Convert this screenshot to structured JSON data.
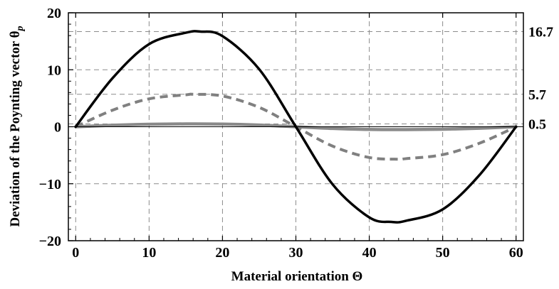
{
  "chart_data": {
    "type": "line",
    "title": "",
    "xlabel": "Material orientation Θ",
    "ylabel": "Deviation of the Poynting vector θ",
    "ylabel_subscript": "p",
    "xlim": [
      -1,
      61
    ],
    "ylim": [
      -20,
      20
    ],
    "x_ticks": [
      0,
      10,
      20,
      30,
      40,
      50,
      60
    ],
    "y_ticks": [
      -20,
      -10,
      0,
      10,
      20
    ],
    "x_tick_labels": [
      "0",
      "10",
      "20",
      "30",
      "40",
      "50",
      "60"
    ],
    "y_tick_labels": [
      "−20",
      "−10",
      "0",
      "10",
      "20"
    ],
    "grid": true,
    "reference_lines": [
      {
        "y": 16.7,
        "label": "16.7"
      },
      {
        "y": 5.7,
        "label": "5.7"
      },
      {
        "y": 0.5,
        "label": "0.5"
      }
    ],
    "series": [
      {
        "style": "solid",
        "color": "#000000",
        "x": [
          0,
          5,
          10,
          15,
          17,
          20,
          25,
          30,
          35,
          40,
          43,
          45,
          50,
          55,
          60
        ],
        "y": [
          0,
          8.5,
          14.5,
          16.5,
          16.7,
          15.9,
          10.1,
          0,
          -10.1,
          -15.9,
          -16.7,
          -16.5,
          -14.5,
          -8.5,
          0
        ]
      },
      {
        "style": "dashed",
        "color": "#808080",
        "x": [
          0,
          5,
          10,
          15,
          16,
          20,
          25,
          30,
          35,
          40,
          44,
          45,
          50,
          55,
          60
        ],
        "y": [
          0,
          2.9,
          4.9,
          5.6,
          5.7,
          5.4,
          3.4,
          0,
          -3.4,
          -5.4,
          -5.7,
          -5.6,
          -4.9,
          -2.9,
          0
        ]
      },
      {
        "style": "solid",
        "color": "#8a8a8a",
        "x": [
          0,
          5,
          10,
          15,
          20,
          25,
          30,
          35,
          40,
          45,
          50,
          55,
          60
        ],
        "y": [
          0,
          0.26,
          0.43,
          0.5,
          0.47,
          0.3,
          0,
          -0.3,
          -0.47,
          -0.5,
          -0.43,
          -0.26,
          0
        ]
      }
    ]
  }
}
